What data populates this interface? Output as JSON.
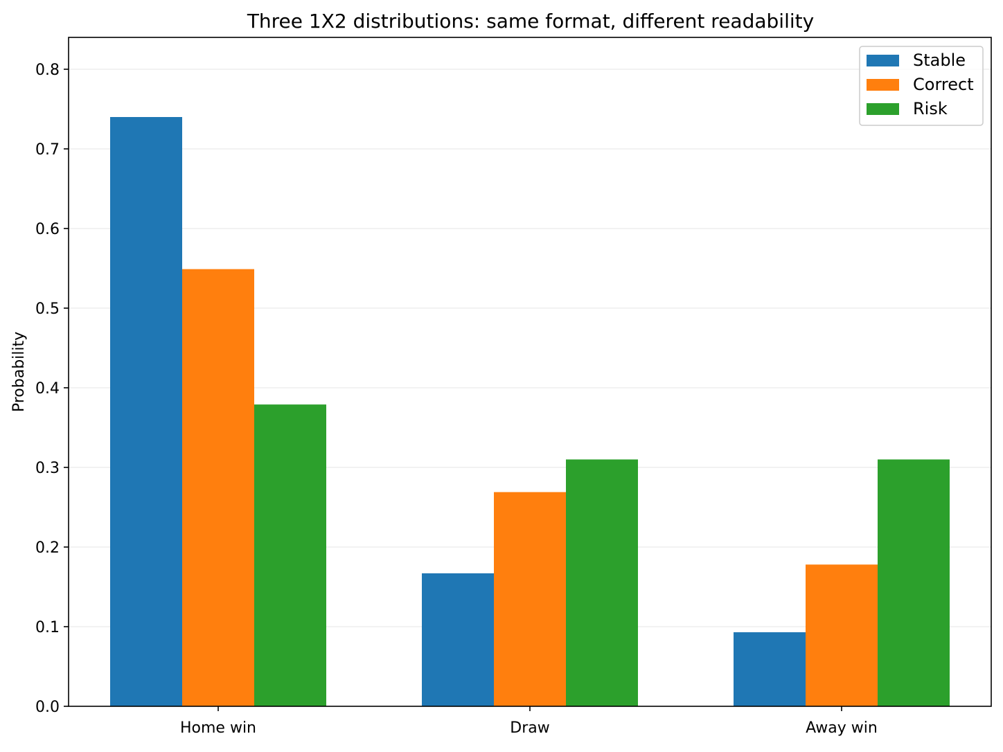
{
  "chart_data": {
    "type": "bar",
    "title": "Three 1X2 distributions: same format, different readability",
    "xlabel": "",
    "ylabel": "Probability",
    "categories": [
      "Home win",
      "Draw",
      "Away win"
    ],
    "series": [
      {
        "name": "Stable",
        "color": "#1f77b4",
        "values": [
          0.74,
          0.167,
          0.093
        ]
      },
      {
        "name": "Correct",
        "color": "#ff7f0e",
        "values": [
          0.549,
          0.269,
          0.178
        ]
      },
      {
        "name": "Risk",
        "color": "#2ca02c",
        "values": [
          0.379,
          0.31,
          0.31
        ]
      }
    ],
    "ylim": [
      0,
      0.84
    ],
    "yticks": [
      "0.0",
      "0.1",
      "0.2",
      "0.3",
      "0.4",
      "0.5",
      "0.6",
      "0.7",
      "0.8"
    ],
    "grid": "horizontal",
    "legend_position": "top-right"
  }
}
